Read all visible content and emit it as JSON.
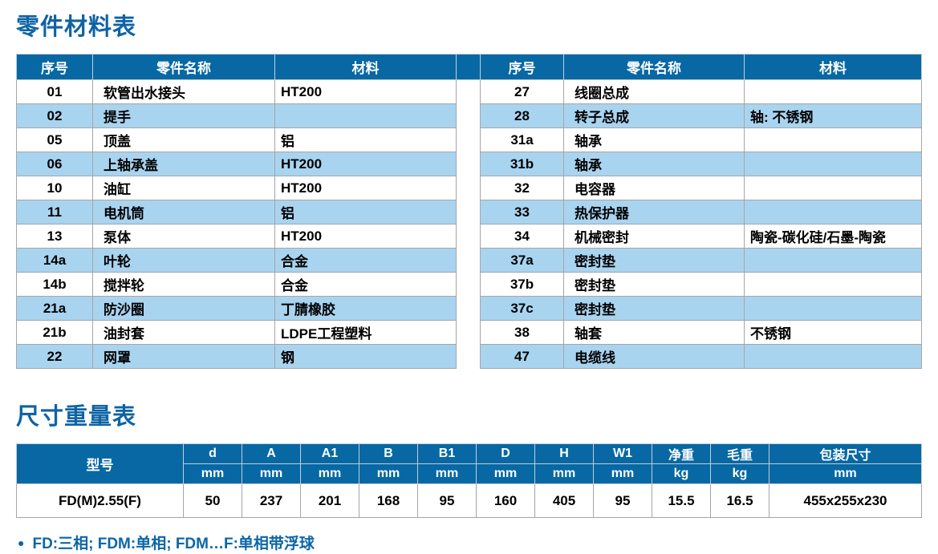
{
  "parts": {
    "title": "零件材料表",
    "headers": {
      "no": "序号",
      "name": "零件名称",
      "material": "材料"
    },
    "left_rows": [
      {
        "no": "01",
        "name": "软管出水接头",
        "material": "HT200"
      },
      {
        "no": "02",
        "name": "提手",
        "material": ""
      },
      {
        "no": "05",
        "name": "顶盖",
        "material": "铝"
      },
      {
        "no": "06",
        "name": "上轴承盖",
        "material": "HT200"
      },
      {
        "no": "10",
        "name": "油缸",
        "material": "HT200"
      },
      {
        "no": "11",
        "name": "电机筒",
        "material": "铝"
      },
      {
        "no": "13",
        "name": "泵体",
        "material": "HT200"
      },
      {
        "no": "14a",
        "name": "叶轮",
        "material": "合金"
      },
      {
        "no": "14b",
        "name": "搅拌轮",
        "material": "合金"
      },
      {
        "no": "21a",
        "name": "防沙圈",
        "material": "丁腈橡胶"
      },
      {
        "no": "21b",
        "name": "油封套",
        "material": "LDPE工程塑料"
      },
      {
        "no": "22",
        "name": "网罩",
        "material": "钢"
      }
    ],
    "right_rows": [
      {
        "no": "27",
        "name": "线圈总成",
        "material": ""
      },
      {
        "no": "28",
        "name": "转子总成",
        "material": "轴: 不锈钢"
      },
      {
        "no": "31a",
        "name": "轴承",
        "material": ""
      },
      {
        "no": "31b",
        "name": "轴承",
        "material": ""
      },
      {
        "no": "32",
        "name": "电容器",
        "material": ""
      },
      {
        "no": "33",
        "name": "热保护器",
        "material": ""
      },
      {
        "no": "34",
        "name": "机械密封",
        "material": "陶瓷-碳化硅/石墨-陶瓷"
      },
      {
        "no": "37a",
        "name": "密封垫",
        "material": ""
      },
      {
        "no": "37b",
        "name": "密封垫",
        "material": ""
      },
      {
        "no": "37c",
        "name": "密封垫",
        "material": ""
      },
      {
        "no": "38",
        "name": "轴套",
        "material": "不锈钢"
      },
      {
        "no": "47",
        "name": "电缆线",
        "material": ""
      }
    ]
  },
  "dimensions": {
    "title": "尺寸重量表",
    "model_header": "型号",
    "columns": [
      {
        "label": "d",
        "unit": "mm"
      },
      {
        "label": "A",
        "unit": "mm"
      },
      {
        "label": "A1",
        "unit": "mm"
      },
      {
        "label": "B",
        "unit": "mm"
      },
      {
        "label": "B1",
        "unit": "mm"
      },
      {
        "label": "D",
        "unit": "mm"
      },
      {
        "label": "H",
        "unit": "mm"
      },
      {
        "label": "W1",
        "unit": "mm"
      },
      {
        "label": "净重",
        "unit": "kg"
      },
      {
        "label": "毛重",
        "unit": "kg"
      },
      {
        "label": "包装尺寸",
        "unit": "mm"
      }
    ],
    "row": {
      "model": "FD(M)2.55(F)",
      "values": [
        "50",
        "237",
        "201",
        "168",
        "95",
        "160",
        "405",
        "95",
        "15.5",
        "16.5",
        "455x255x230"
      ]
    }
  },
  "footnote": {
    "bullet": "●",
    "text": "FD:三相; FDM:单相; FDM…F:单相带浮球"
  },
  "colors": {
    "header_blue": "#0768a4",
    "stripe_blue": "#a9d4f0",
    "title_blue": "#0e63a4",
    "border_grey": "#a5a5a5"
  }
}
